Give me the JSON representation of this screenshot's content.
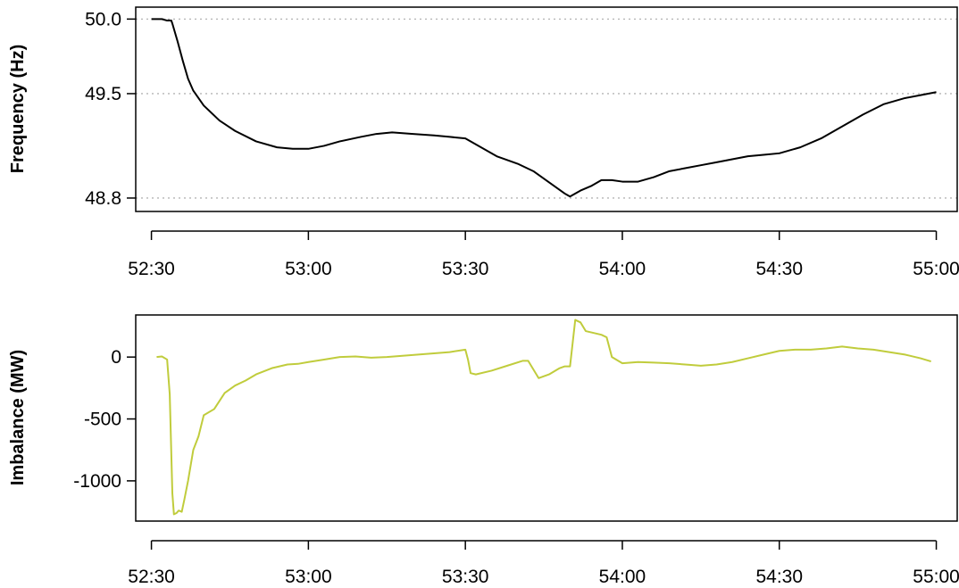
{
  "chart_data": [
    {
      "type": "line",
      "ylabel": "Frequency (Hz)",
      "xlabel": "",
      "x_tick_labels": [
        "52:30",
        "53:00",
        "53:30",
        "54:00",
        "54:30",
        "55:00"
      ],
      "x_ticks": [
        3150,
        3180,
        3210,
        3240,
        3270,
        3300
      ],
      "xlim": [
        3147,
        3304
      ],
      "y_ticks": [
        48.8,
        49.5,
        50.0
      ],
      "y_tick_labels": [
        "48.8",
        "49.5",
        "50.0"
      ],
      "ylim": [
        48.71,
        50.08
      ],
      "grid": "horizontal dotted at y ticks",
      "line_color": "#000000",
      "series": [
        {
          "x": [
            3150,
            3151,
            3152,
            3153,
            3153.8,
            3154,
            3155,
            3156,
            3157,
            3158,
            3160,
            3163,
            3166,
            3170,
            3174,
            3177,
            3180,
            3183,
            3186,
            3190,
            3193,
            3196,
            3200,
            3204,
            3207,
            3210,
            3213,
            3216,
            3220,
            3223,
            3225,
            3227,
            3229,
            3230,
            3232,
            3234,
            3236,
            3238,
            3240,
            3243,
            3246,
            3249,
            3252,
            3255,
            3258,
            3261,
            3264,
            3267,
            3270,
            3274,
            3278,
            3282,
            3286,
            3290,
            3294,
            3297,
            3300
          ],
          "y": [
            50.0,
            50.0,
            50.0,
            49.99,
            49.99,
            49.97,
            49.85,
            49.72,
            49.6,
            49.52,
            49.42,
            49.32,
            49.25,
            49.18,
            49.14,
            49.13,
            49.13,
            49.15,
            49.18,
            49.21,
            49.23,
            49.24,
            49.23,
            49.22,
            49.21,
            49.2,
            49.14,
            49.08,
            49.03,
            48.98,
            48.93,
            48.88,
            48.83,
            48.81,
            48.85,
            48.88,
            48.92,
            48.92,
            48.91,
            48.91,
            48.94,
            48.98,
            49.0,
            49.02,
            49.04,
            49.06,
            49.08,
            49.09,
            49.1,
            49.14,
            49.2,
            49.28,
            49.36,
            49.43,
            49.47,
            49.49,
            49.51
          ]
        }
      ]
    },
    {
      "type": "line",
      "ylabel": "Imbalance (MW)",
      "xlabel": "",
      "x_tick_labels": [
        "52:30",
        "53:00",
        "53:30",
        "54:00",
        "54:30",
        "55:00"
      ],
      "x_ticks": [
        3150,
        3180,
        3210,
        3240,
        3270,
        3300
      ],
      "xlim": [
        3147,
        3304
      ],
      "y_ticks": [
        -1000,
        -500,
        0
      ],
      "y_tick_labels": [
        "-1000",
        "-500",
        "0"
      ],
      "ylim": [
        -1325,
        340
      ],
      "grid": "none",
      "line_color": "#c0cc3c",
      "series": [
        {
          "x": [
            3151,
            3152,
            3153,
            3153.5,
            3154,
            3154.3,
            3154.8,
            3155.2,
            3155.8,
            3156.3,
            3157,
            3158,
            3159,
            3160,
            3162,
            3164,
            3166,
            3168,
            3170,
            3173,
            3176,
            3178,
            3180,
            3183,
            3186,
            3189,
            3192,
            3195,
            3198,
            3201,
            3204,
            3207,
            3210,
            3210.5,
            3211,
            3212,
            3215,
            3218,
            3221,
            3222,
            3224,
            3226,
            3228,
            3229,
            3230,
            3231,
            3232,
            3233,
            3235,
            3236,
            3237,
            3238,
            3240,
            3243,
            3246,
            3249,
            3252,
            3255,
            3258,
            3261,
            3264,
            3267,
            3270,
            3273,
            3276,
            3279,
            3282,
            3285,
            3288,
            3291,
            3294,
            3297,
            3299
          ],
          "y": [
            0,
            5,
            -20,
            -300,
            -1100,
            -1270,
            -1260,
            -1240,
            -1250,
            -1150,
            -1000,
            -750,
            -640,
            -470,
            -420,
            -290,
            -230,
            -190,
            -140,
            -90,
            -60,
            -55,
            -40,
            -20,
            0,
            5,
            -5,
            0,
            10,
            20,
            30,
            40,
            60,
            -20,
            -130,
            -140,
            -110,
            -70,
            -30,
            -30,
            -170,
            -140,
            -90,
            -75,
            -75,
            300,
            280,
            210,
            190,
            180,
            160,
            0,
            -50,
            -40,
            -45,
            -50,
            -60,
            -70,
            -60,
            -40,
            -10,
            20,
            50,
            60,
            60,
            70,
            85,
            70,
            60,
            40,
            20,
            -10,
            -35
          ]
        }
      ]
    }
  ]
}
